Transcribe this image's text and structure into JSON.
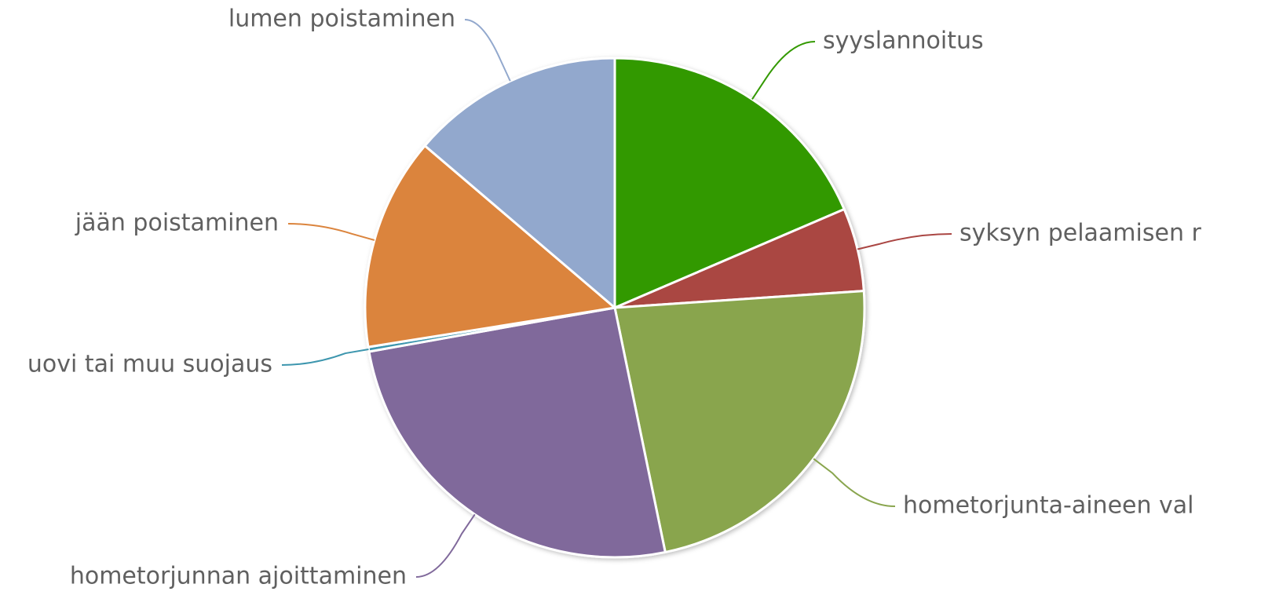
{
  "chart_data": {
    "type": "pie",
    "categories": [
      "syyslannoitus",
      "syksyn pelaamisen r",
      "hometorjunta-aineen val",
      "hometorjunnan ajoittaminen",
      "uovi tai muu suojaus",
      "jään poistaminen",
      "lumen poistaminen"
    ],
    "values": [
      18.6,
      5.4,
      22.9,
      25.5,
      0.3,
      13.8,
      13.8
    ],
    "colors": [
      "#339900",
      "#aa4643",
      "#89a54e",
      "#80699b",
      "#3d96ae",
      "#db843d",
      "#92a8cd"
    ]
  }
}
